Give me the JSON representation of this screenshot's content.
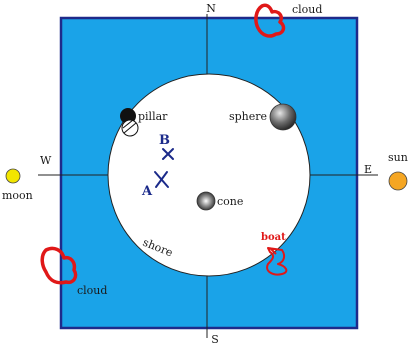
{
  "compass": {
    "north": "N",
    "south": "S",
    "east": "E",
    "west": "W"
  },
  "labels": {
    "cloud_top": "cloud",
    "cloud_bottom": "cloud",
    "moon": "moon",
    "sun": "sun",
    "pillar": "pillar",
    "sphere": "sphere",
    "cone": "cone",
    "shore": "shore",
    "boat": "boat",
    "mark_a": "A",
    "mark_b": "B"
  },
  "colors": {
    "water": "#1aa3e8",
    "frame": "#1f2a8a",
    "island": "#ffffff",
    "cloud": "#e01818",
    "sun": "#f5a623",
    "moon": "#f2e600",
    "cross": "#1b2a8a"
  }
}
